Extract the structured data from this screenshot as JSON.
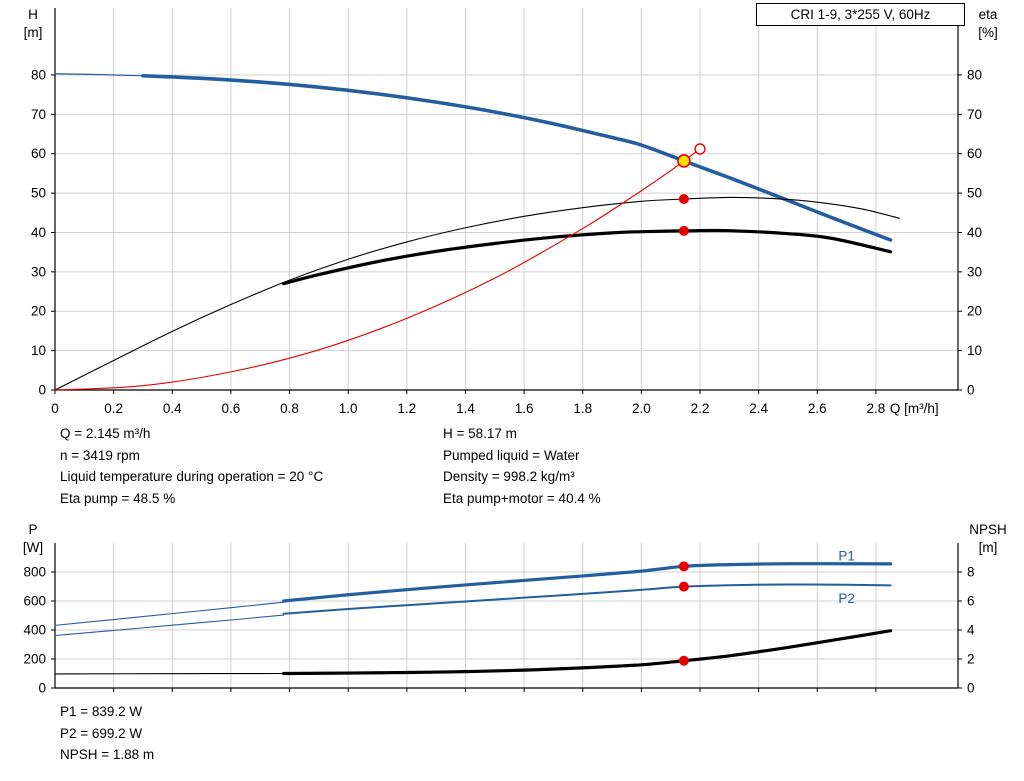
{
  "title_box": "CRI 1-9, 3*255 V, 60Hz",
  "info_top": {
    "left": [
      "Q = 2.145 m³/h",
      "n = 3419 rpm",
      "Liquid temperature during operation = 20 °C",
      "Eta pump = 48.5 %"
    ],
    "right": [
      "H = 58.17 m",
      "Pumped liquid = Water",
      "Density = 998.2 kg/m³",
      "Eta pump+motor = 40.4 %"
    ]
  },
  "info_bottom": [
    "P1 = 839.2 W",
    "P2 = 699.2 W",
    "NPSH = 1.88 m"
  ],
  "colors": {
    "curve_blue": "#235e9e",
    "curve_black": "#000000",
    "curve_red": "#e60000",
    "duty_yellow": "#ffe000",
    "grid": "#d0d0d0",
    "axis": "#000000"
  },
  "chart_data": [
    {
      "type": "line",
      "id": "qh-eta",
      "title": "CRI 1-9, 3*255 V, 60Hz",
      "x_label": "Q [m³/h]",
      "y_left_label": [
        "H",
        "[m]"
      ],
      "y_right_label": [
        "eta",
        "[%]"
      ],
      "x_range": [
        0,
        3.08
      ],
      "y_left_range": [
        0,
        97
      ],
      "y_right_range": [
        0,
        97
      ],
      "grid": true,
      "x_ticks": [
        0,
        0.2,
        0.4,
        0.6,
        0.8,
        1.0,
        1.2,
        1.4,
        1.6,
        1.8,
        2.0,
        2.2,
        2.4,
        2.6,
        2.8
      ],
      "x_tick_labels": [
        "0",
        "0.2",
        "0.4",
        "0.6",
        "0.8",
        "1.0",
        "1.2",
        "1.4",
        "1.6",
        "1.8",
        "2.0",
        "2.2",
        "2.4",
        "2.6",
        "2.8"
      ],
      "y_left_ticks": [
        0,
        10,
        20,
        30,
        40,
        50,
        60,
        70,
        80
      ],
      "y_right_ticks": [
        0,
        10,
        20,
        30,
        40,
        50,
        60,
        70,
        80
      ],
      "series": [
        {
          "name": "pump-curve-thin",
          "axis": "left",
          "color": "#235e9e",
          "width": 1.2,
          "points": [
            [
              0,
              80.3
            ],
            [
              0.12,
              80.15
            ],
            [
              0.22,
              79.95
            ],
            [
              0.32,
              79.75
            ]
          ]
        },
        {
          "name": "pump-curve",
          "axis": "left",
          "color": "#235e9e",
          "width": 3.6,
          "points": [
            [
              0.3,
              79.8
            ],
            [
              0.5,
              79.15
            ],
            [
              0.7,
              78.2
            ],
            [
              0.9,
              76.9
            ],
            [
              1.1,
              75.2
            ],
            [
              1.3,
              73.1
            ],
            [
              1.5,
              70.6
            ],
            [
              1.7,
              67.6
            ],
            [
              1.9,
              64.1
            ],
            [
              2.0,
              62.2
            ],
            [
              2.145,
              58.17
            ],
            [
              2.3,
              53.9
            ],
            [
              2.45,
              49.6
            ],
            [
              2.6,
              45.2
            ],
            [
              2.75,
              40.9
            ],
            [
              2.85,
              38.1
            ]
          ]
        },
        {
          "name": "eta-pump-curve",
          "axis": "right",
          "color": "#000000",
          "width": 1.1,
          "points": [
            [
              0,
              0
            ],
            [
              0.2,
              7.5
            ],
            [
              0.4,
              14.9
            ],
            [
              0.6,
              21.7
            ],
            [
              0.8,
              27.9
            ],
            [
              1.0,
              33.2
            ],
            [
              1.2,
              37.6
            ],
            [
              1.4,
              41.2
            ],
            [
              1.6,
              44.1
            ],
            [
              1.8,
              46.3
            ],
            [
              2.0,
              47.9
            ],
            [
              2.145,
              48.5
            ],
            [
              2.3,
              48.9
            ],
            [
              2.45,
              48.6
            ],
            [
              2.6,
              47.7
            ],
            [
              2.75,
              46.0
            ],
            [
              2.88,
              43.6
            ]
          ]
        },
        {
          "name": "eta-pump-motor-curve",
          "axis": "right",
          "color": "#000000",
          "width": 3.2,
          "points": [
            [
              0.78,
              27.0
            ],
            [
              0.9,
              29.3
            ],
            [
              1.1,
              32.6
            ],
            [
              1.3,
              35.2
            ],
            [
              1.5,
              37.2
            ],
            [
              1.7,
              38.8
            ],
            [
              1.9,
              39.9
            ],
            [
              2.0,
              40.2
            ],
            [
              2.145,
              40.4
            ],
            [
              2.3,
              40.45
            ],
            [
              2.5,
              39.7
            ],
            [
              2.65,
              38.5
            ],
            [
              2.85,
              35.1
            ]
          ]
        },
        {
          "name": "system-curve",
          "axis": "left",
          "color": "#e60000",
          "width": 1.1,
          "points": [
            [
              0,
              0
            ],
            [
              0.3,
              1.1
            ],
            [
              0.6,
              4.6
            ],
            [
              0.9,
              10.2
            ],
            [
              1.2,
              18.2
            ],
            [
              1.5,
              28.4
            ],
            [
              1.8,
              41.0
            ],
            [
              2.0,
              50.6
            ],
            [
              2.1,
              55.7
            ],
            [
              2.2,
              61.2
            ]
          ]
        }
      ],
      "markers": [
        {
          "name": "duty-point",
          "axis": "left",
          "x": 2.145,
          "y": 58.17,
          "style": "duty"
        },
        {
          "name": "system-curve-end-point",
          "axis": "left",
          "x": 2.2,
          "y": 61.2,
          "style": "open"
        },
        {
          "name": "eta-pump-point",
          "axis": "right",
          "x": 2.145,
          "y": 48.5,
          "style": "dot"
        },
        {
          "name": "eta-pump-motor-point",
          "axis": "right",
          "x": 2.145,
          "y": 40.4,
          "style": "dot"
        }
      ],
      "annotations": []
    },
    {
      "type": "line",
      "id": "power-npsh",
      "title": "",
      "x_label": "",
      "y_left_label": [
        "P",
        "[W]"
      ],
      "y_right_label": [
        "NPSH",
        "[m]"
      ],
      "x_range": [
        0,
        3.08
      ],
      "y_left_range": [
        0,
        1000
      ],
      "y_right_range": [
        0,
        10
      ],
      "grid": true,
      "x_ticks": [
        0.2,
        0.4,
        0.6,
        0.8,
        1.0,
        1.2,
        1.4,
        1.6,
        1.8,
        2.0,
        2.2,
        2.4,
        2.6,
        2.8
      ],
      "y_left_ticks": [
        0,
        200,
        400,
        600,
        800
      ],
      "y_right_ticks": [
        0,
        2,
        4,
        6,
        8
      ],
      "series": [
        {
          "name": "p1-curve-thin",
          "axis": "left",
          "color": "#235e9e",
          "width": 1.1,
          "points": [
            [
              0,
              432
            ],
            [
              0.2,
              472
            ],
            [
              0.4,
              513
            ],
            [
              0.6,
              554
            ],
            [
              0.78,
              592
            ]
          ]
        },
        {
          "name": "p1-curve",
          "axis": "left",
          "color": "#235e9e",
          "width": 3.2,
          "points": [
            [
              0.78,
              600
            ],
            [
              1.0,
              643
            ],
            [
              1.2,
              678
            ],
            [
              1.4,
              711
            ],
            [
              1.6,
              742
            ],
            [
              1.8,
              773
            ],
            [
              2.0,
              806
            ],
            [
              2.145,
              839
            ],
            [
              2.3,
              851
            ],
            [
              2.5,
              857
            ],
            [
              2.7,
              857
            ],
            [
              2.85,
              856
            ]
          ]
        },
        {
          "name": "p2-curve-thin",
          "axis": "left",
          "color": "#235e9e",
          "width": 1.1,
          "points": [
            [
              0,
              362
            ],
            [
              0.2,
              397
            ],
            [
              0.4,
              433
            ],
            [
              0.6,
              469
            ],
            [
              0.78,
              503
            ]
          ]
        },
        {
          "name": "p2-curve",
          "axis": "left",
          "color": "#235e9e",
          "width": 2.0,
          "points": [
            [
              0.78,
              512
            ],
            [
              1.0,
              545
            ],
            [
              1.2,
              571
            ],
            [
              1.4,
              597
            ],
            [
              1.6,
              623
            ],
            [
              1.8,
              649
            ],
            [
              2.0,
              677
            ],
            [
              2.145,
              699
            ],
            [
              2.3,
              709
            ],
            [
              2.5,
              714
            ],
            [
              2.7,
              712
            ],
            [
              2.85,
              708
            ]
          ]
        },
        {
          "name": "npsh-curve-thin",
          "axis": "right",
          "color": "#000000",
          "width": 1.1,
          "points": [
            [
              0,
              0.97
            ],
            [
              0.4,
              0.99
            ],
            [
              0.78,
              1.0
            ]
          ]
        },
        {
          "name": "npsh-curve",
          "axis": "right",
          "color": "#000000",
          "width": 3.2,
          "points": [
            [
              0.78,
              1.0
            ],
            [
              1.0,
              1.03
            ],
            [
              1.2,
              1.07
            ],
            [
              1.4,
              1.13
            ],
            [
              1.6,
              1.23
            ],
            [
              1.8,
              1.39
            ],
            [
              2.0,
              1.6
            ],
            [
              2.145,
              1.88
            ],
            [
              2.3,
              2.22
            ],
            [
              2.5,
              2.8
            ],
            [
              2.7,
              3.45
            ],
            [
              2.85,
              3.95
            ]
          ]
        }
      ],
      "markers": [
        {
          "name": "p1-point",
          "axis": "left",
          "x": 2.145,
          "y": 839.2,
          "style": "dot"
        },
        {
          "name": "p2-point",
          "axis": "left",
          "x": 2.145,
          "y": 699.2,
          "style": "dot"
        },
        {
          "name": "npsh-point",
          "axis": "right",
          "x": 2.145,
          "y": 1.88,
          "style": "dot"
        }
      ],
      "annotations": [
        {
          "name": "p1-label",
          "text": "P1",
          "axis": "left",
          "x": 2.7,
          "y": 880,
          "color": "#235e9e"
        },
        {
          "name": "p2-label",
          "text": "P2",
          "axis": "left",
          "x": 2.7,
          "y": 585,
          "color": "#235e9e"
        }
      ]
    }
  ]
}
